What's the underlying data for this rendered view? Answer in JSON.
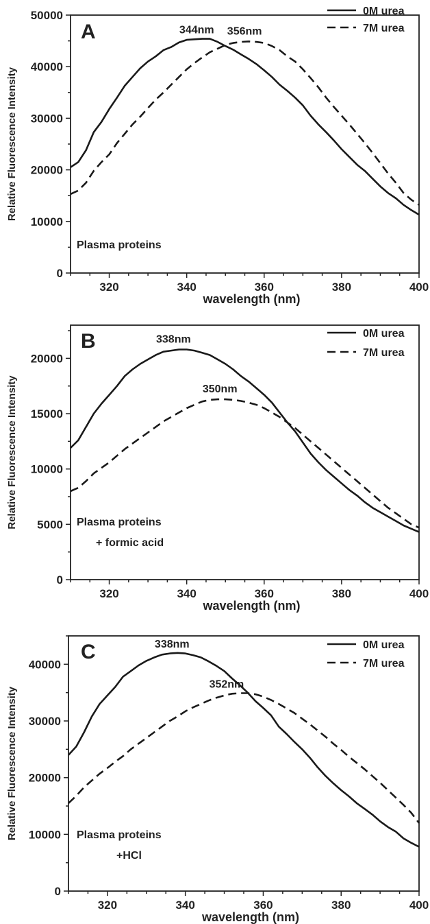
{
  "chart_data": [
    {
      "type": "line",
      "panel_label": "A",
      "xlabel": "wavelength (nm)",
      "ylabel": "Relative Fluorescence Intensity",
      "xlim": [
        310,
        400
      ],
      "ylim": [
        0,
        50000
      ],
      "xticks": [
        320,
        340,
        360,
        380,
        400
      ],
      "yticks": [
        0,
        10000,
        20000,
        30000,
        40000,
        50000
      ],
      "sample_label": [
        "Plasma proteins"
      ],
      "legend": {
        "position": "top-right",
        "entries": [
          "0M urea",
          "7M urea"
        ]
      },
      "series": [
        {
          "name": "0M urea",
          "style": "solid",
          "x": [
            310,
            312,
            314,
            316,
            318,
            320,
            322,
            324,
            326,
            328,
            330,
            332,
            334,
            336,
            338,
            340,
            342,
            344,
            346,
            348,
            350,
            352,
            354,
            356,
            358,
            360,
            362,
            364,
            366,
            368,
            370,
            372,
            374,
            376,
            378,
            380,
            382,
            384,
            386,
            388,
            390,
            392,
            394,
            396,
            398,
            400
          ],
          "y": [
            20500,
            21500,
            23800,
            27300,
            29300,
            31800,
            34000,
            36300,
            38000,
            39700,
            41000,
            42000,
            43200,
            43800,
            44700,
            45200,
            45300,
            45400,
            45400,
            44800,
            44000,
            43300,
            42400,
            41500,
            40500,
            39300,
            38000,
            36500,
            35300,
            34000,
            32500,
            30500,
            28800,
            27300,
            25700,
            24000,
            22500,
            21000,
            19800,
            18300,
            16800,
            15500,
            14500,
            13200,
            12200,
            11300
          ]
        },
        {
          "name": "7M urea",
          "style": "dashed",
          "x": [
            310,
            312,
            314,
            316,
            318,
            320,
            322,
            324,
            326,
            328,
            330,
            332,
            334,
            336,
            338,
            340,
            342,
            344,
            346,
            348,
            350,
            352,
            354,
            356,
            358,
            360,
            362,
            364,
            366,
            368,
            370,
            372,
            374,
            376,
            378,
            380,
            382,
            384,
            386,
            388,
            390,
            392,
            394,
            396,
            398,
            400
          ],
          "y": [
            15300,
            16000,
            17500,
            19800,
            21500,
            23000,
            25200,
            27000,
            28800,
            30300,
            32000,
            33600,
            35000,
            36500,
            38000,
            39500,
            40700,
            41800,
            42800,
            43500,
            44200,
            44600,
            44800,
            44900,
            44800,
            44600,
            44000,
            43200,
            42000,
            41000,
            39500,
            37800,
            36000,
            34000,
            32200,
            30500,
            28800,
            27000,
            25200,
            23300,
            21300,
            19300,
            17500,
            15500,
            14200,
            13200
          ]
        }
      ],
      "annotations": [
        {
          "text": "344nm",
          "x": 344,
          "y": 45400
        },
        {
          "text": "356nm",
          "x": 356,
          "y": 44900
        }
      ]
    },
    {
      "type": "line",
      "panel_label": "B",
      "xlabel": "wavelength (nm)",
      "ylabel": "Relative Fluorescence Intensity",
      "xlim": [
        310,
        400
      ],
      "ylim": [
        0,
        23000
      ],
      "xticks": [
        320,
        340,
        360,
        380,
        400
      ],
      "yticks": [
        0,
        5000,
        10000,
        15000,
        20000
      ],
      "sample_label": [
        "Plasma proteins",
        "+ formic acid"
      ],
      "legend": {
        "position": "top-right",
        "entries": [
          "0M urea",
          "7M urea"
        ]
      },
      "series": [
        {
          "name": "0M urea",
          "style": "solid",
          "x": [
            310,
            312,
            314,
            316,
            318,
            320,
            322,
            324,
            326,
            328,
            330,
            332,
            334,
            336,
            338,
            340,
            342,
            344,
            346,
            348,
            350,
            352,
            354,
            356,
            358,
            360,
            362,
            364,
            366,
            368,
            370,
            372,
            374,
            376,
            378,
            380,
            382,
            384,
            386,
            388,
            390,
            392,
            394,
            396,
            398,
            400
          ],
          "y": [
            11900,
            12600,
            13800,
            15000,
            15900,
            16700,
            17500,
            18400,
            19000,
            19500,
            19900,
            20300,
            20600,
            20700,
            20800,
            20800,
            20700,
            20500,
            20300,
            19900,
            19500,
            19000,
            18400,
            17900,
            17300,
            16700,
            16000,
            15100,
            14200,
            13400,
            12400,
            11400,
            10600,
            9900,
            9300,
            8700,
            8100,
            7600,
            7000,
            6500,
            6100,
            5700,
            5300,
            4900,
            4600,
            4300
          ]
        },
        {
          "name": "7M urea",
          "style": "dashed",
          "x": [
            310,
            312,
            314,
            316,
            318,
            320,
            322,
            324,
            326,
            328,
            330,
            332,
            334,
            336,
            338,
            340,
            342,
            344,
            346,
            348,
            350,
            352,
            354,
            356,
            358,
            360,
            362,
            364,
            366,
            368,
            370,
            372,
            374,
            376,
            378,
            380,
            382,
            384,
            386,
            388,
            390,
            392,
            394,
            396,
            398,
            400
          ],
          "y": [
            8000,
            8300,
            8900,
            9600,
            10100,
            10600,
            11200,
            11800,
            12300,
            12800,
            13300,
            13800,
            14300,
            14700,
            15100,
            15500,
            15800,
            16100,
            16250,
            16300,
            16300,
            16250,
            16150,
            16000,
            15800,
            15500,
            15100,
            14700,
            14200,
            13700,
            13100,
            12500,
            11900,
            11300,
            10700,
            10100,
            9500,
            8900,
            8300,
            7700,
            7100,
            6500,
            6000,
            5500,
            5000,
            4700
          ]
        }
      ],
      "annotations": [
        {
          "text": "338nm",
          "x": 338,
          "y": 20800
        },
        {
          "text": "350nm",
          "x": 350,
          "y": 16300
        }
      ]
    },
    {
      "type": "line",
      "panel_label": "C",
      "xlabel": "wavelength (nm)",
      "ylabel": "Relative Fluorescence Intensity",
      "xlim": [
        310,
        400
      ],
      "ylim": [
        0,
        45000
      ],
      "xticks": [
        320,
        340,
        360,
        380,
        400
      ],
      "yticks": [
        0,
        10000,
        20000,
        30000,
        40000
      ],
      "sample_label": [
        "Plasma proteins",
        "+HCl"
      ],
      "legend": {
        "position": "top-right",
        "entries": [
          "0M urea",
          "7M urea"
        ]
      },
      "series": [
        {
          "name": "0M urea",
          "style": "solid",
          "x": [
            310,
            312,
            314,
            316,
            318,
            320,
            322,
            324,
            326,
            328,
            330,
            332,
            334,
            336,
            338,
            340,
            342,
            344,
            346,
            348,
            350,
            352,
            354,
            356,
            358,
            360,
            362,
            364,
            366,
            368,
            370,
            372,
            374,
            376,
            378,
            380,
            382,
            384,
            386,
            388,
            390,
            392,
            394,
            396,
            398,
            400
          ],
          "y": [
            24000,
            25500,
            28000,
            30800,
            33000,
            34500,
            36000,
            37800,
            38800,
            39800,
            40600,
            41200,
            41700,
            41900,
            42000,
            41900,
            41600,
            41200,
            40500,
            39700,
            38800,
            37500,
            36300,
            35000,
            33500,
            32300,
            31000,
            29000,
            27700,
            26300,
            25000,
            23500,
            21800,
            20300,
            19000,
            17800,
            16700,
            15500,
            14500,
            13500,
            12300,
            11300,
            10500,
            9300,
            8500,
            7800
          ]
        },
        {
          "name": "7M urea",
          "style": "dashed",
          "x": [
            310,
            312,
            314,
            316,
            318,
            320,
            322,
            324,
            326,
            328,
            330,
            332,
            334,
            336,
            338,
            340,
            342,
            344,
            346,
            348,
            350,
            352,
            354,
            356,
            358,
            360,
            362,
            364,
            366,
            368,
            370,
            372,
            374,
            376,
            378,
            380,
            382,
            384,
            386,
            388,
            390,
            392,
            394,
            396,
            398,
            400
          ],
          "y": [
            15500,
            16800,
            18300,
            19500,
            20700,
            21700,
            22800,
            23800,
            25000,
            26000,
            27000,
            28000,
            29000,
            30000,
            30800,
            31700,
            32400,
            33000,
            33600,
            34100,
            34500,
            34800,
            34900,
            34900,
            34700,
            34300,
            33700,
            33000,
            32200,
            31400,
            30400,
            29400,
            28300,
            27200,
            26000,
            24900,
            23700,
            22600,
            21500,
            20300,
            19100,
            17800,
            16500,
            15200,
            13800,
            12000
          ]
        }
      ],
      "annotations": [
        {
          "text": "338nm",
          "x": 338,
          "y": 42000
        },
        {
          "text": "352nm",
          "x": 352,
          "y": 34900
        }
      ]
    }
  ]
}
